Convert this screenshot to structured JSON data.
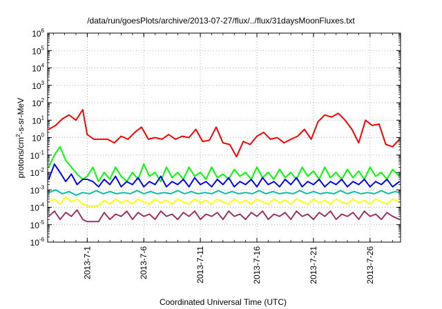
{
  "chart_data": {
    "type": "line",
    "title": "/data/run/goesPlots/archive/2013-07-27/flux/../flux/31daysMoonFluxes.txt",
    "xlabel": "Coordinated Universal Time (UTC)",
    "ylabel": "protons/cm²-s-sr-MeV",
    "ylabel_parts": [
      "protons/cm",
      "2",
      "-s-sr-MeV"
    ],
    "yscale": "log",
    "ylim": [
      1e-06,
      1000000.0
    ],
    "xlim_days": [
      -3.5,
      27.7
    ],
    "x_ticks": [
      {
        "label": "2013-7-1",
        "day": 0
      },
      {
        "label": "2013-7-6",
        "day": 5
      },
      {
        "label": "2013-7-11",
        "day": 10
      },
      {
        "label": "2013-7-16",
        "day": 15
      },
      {
        "label": "2013-7-21",
        "day": 20
      },
      {
        "label": "2013-7-26",
        "day": 25
      }
    ],
    "y_ticks": [
      {
        "base": "10",
        "exp": "-6",
        "exp10": -6
      },
      {
        "base": "10",
        "exp": "-5",
        "exp10": -5
      },
      {
        "base": "10",
        "exp": "-4",
        "exp10": -4
      },
      {
        "base": "10",
        "exp": "-3",
        "exp10": -3
      },
      {
        "base": "10",
        "exp": "-2",
        "exp10": -2
      },
      {
        "base": "10",
        "exp": "-1",
        "exp10": -1
      },
      {
        "base": "10",
        "exp": "0",
        "exp10": 0
      },
      {
        "base": "10",
        "exp": "1",
        "exp10": 1
      },
      {
        "base": "10",
        "exp": "2",
        "exp10": 2
      },
      {
        "base": "10",
        "exp": "3",
        "exp10": 3
      },
      {
        "base": "10",
        "exp": "4",
        "exp10": 4
      },
      {
        "base": "10",
        "exp": "5",
        "exp10": 5
      },
      {
        "base": "10",
        "exp": "6",
        "exp10": 6
      }
    ],
    "grid": true,
    "series": [
      {
        "color": "#ff0000",
        "x": [
          -3.4,
          -2.8,
          -2.2,
          -1.6,
          -1.0,
          -0.4,
          0.0,
          0.6,
          1.2,
          1.8,
          2.4,
          3.0,
          3.6,
          4.2,
          4.8,
          5.4,
          6.0,
          6.6,
          7.2,
          7.8,
          8.4,
          9.0,
          9.6,
          10.2,
          10.8,
          11.4,
          12.0,
          12.6,
          13.2,
          13.8,
          14.4,
          15.0,
          15.6,
          16.2,
          16.8,
          17.4,
          18.0,
          18.6,
          19.2,
          19.8,
          20.4,
          21.0,
          21.6,
          22.2,
          22.8,
          23.4,
          24.0,
          24.6,
          25.2,
          25.8,
          26.4,
          27.0,
          27.6
        ],
        "y": [
          3,
          5,
          12,
          20,
          10,
          40,
          1.5,
          0.8,
          0.8,
          0.8,
          0.5,
          1.2,
          0.8,
          2,
          4,
          0.8,
          1,
          0.8,
          1.5,
          0.8,
          1.2,
          1,
          3,
          0.6,
          0.7,
          4,
          0.5,
          0.4,
          0.08,
          0.6,
          0.4,
          1.2,
          2,
          0.8,
          1,
          0.5,
          0.8,
          1.2,
          3,
          0.8,
          8,
          20,
          15,
          25,
          10,
          3,
          0.5,
          10,
          5,
          6,
          0.4,
          0.3,
          0.8
        ]
      },
      {
        "color": "#00ff00",
        "x": [
          -3.4,
          -2.9,
          -2.4,
          -1.9,
          -1.4,
          -0.9,
          -0.4,
          0.0,
          0.5,
          1.0,
          1.5,
          2.0,
          2.5,
          3.0,
          3.5,
          4.0,
          4.5,
          5.0,
          5.5,
          6.0,
          6.5,
          7.0,
          7.5,
          8.0,
          8.5,
          9.0,
          9.5,
          10.0,
          10.5,
          11.0,
          11.5,
          12.0,
          12.5,
          13.0,
          13.5,
          14.0,
          14.5,
          15.0,
          15.5,
          16.0,
          16.5,
          17.0,
          17.5,
          18.0,
          18.5,
          19.0,
          19.5,
          20.0,
          20.5,
          21.0,
          21.5,
          22.0,
          22.5,
          23.0,
          23.5,
          24.0,
          24.5,
          25.0,
          25.5,
          26.0,
          26.5,
          27.0,
          27.6
        ],
        "y": [
          0.02,
          0.1,
          0.3,
          0.05,
          0.02,
          0.008,
          0.004,
          0.006,
          0.02,
          0.003,
          0.01,
          0.004,
          0.02,
          0.006,
          0.003,
          0.01,
          0.004,
          0.03,
          0.006,
          0.01,
          0.003,
          0.02,
          0.005,
          0.01,
          0.004,
          0.02,
          0.006,
          0.01,
          0.004,
          0.02,
          0.005,
          0.008,
          0.004,
          0.015,
          0.006,
          0.01,
          0.004,
          0.02,
          0.005,
          0.01,
          0.004,
          0.015,
          0.005,
          0.01,
          0.004,
          0.02,
          0.006,
          0.012,
          0.004,
          0.02,
          0.005,
          0.01,
          0.004,
          0.015,
          0.005,
          0.012,
          0.004,
          0.02,
          0.006,
          0.01,
          0.004,
          0.015,
          0.006
        ]
      },
      {
        "color": "#0000ff",
        "x": [
          -3.4,
          -2.9,
          -2.4,
          -1.9,
          -1.4,
          -0.9,
          -0.4,
          0.0,
          0.5,
          1.0,
          1.5,
          2.0,
          2.5,
          3.0,
          3.5,
          4.0,
          4.5,
          5.0,
          5.5,
          6.0,
          6.5,
          7.0,
          7.5,
          8.0,
          8.5,
          9.0,
          9.5,
          10.0,
          10.5,
          11.0,
          11.5,
          12.0,
          12.5,
          13.0,
          13.5,
          14.0,
          14.5,
          15.0,
          15.5,
          16.0,
          16.5,
          17.0,
          17.5,
          18.0,
          18.5,
          19.0,
          19.5,
          20.0,
          20.5,
          21.0,
          21.5,
          22.0,
          22.5,
          23.0,
          23.5,
          24.0,
          24.5,
          25.0,
          25.5,
          26.0,
          26.5,
          27.0,
          27.6
        ],
        "y": [
          0.004,
          0.03,
          0.01,
          0.003,
          0.008,
          0.002,
          0.004,
          0.004,
          0.003,
          0.0015,
          0.004,
          0.002,
          0.006,
          0.0015,
          0.003,
          0.002,
          0.005,
          0.0015,
          0.003,
          0.002,
          0.006,
          0.0015,
          0.003,
          0.002,
          0.004,
          0.0015,
          0.005,
          0.002,
          0.003,
          0.0015,
          0.004,
          0.002,
          0.005,
          0.0015,
          0.003,
          0.002,
          0.004,
          0.0015,
          0.005,
          0.002,
          0.003,
          0.0015,
          0.004,
          0.002,
          0.005,
          0.0015,
          0.003,
          0.002,
          0.004,
          0.0015,
          0.003,
          0.002,
          0.004,
          0.0015,
          0.003,
          0.002,
          0.004,
          0.0015,
          0.003,
          0.002,
          0.004,
          0.0015,
          0.003
        ]
      },
      {
        "color": "#00c0a0",
        "x": [
          -3.4,
          -2.8,
          -2.2,
          -1.6,
          -1.0,
          -0.4,
          0.2,
          0.8,
          1.4,
          2.0,
          2.6,
          3.2,
          3.8,
          4.4,
          5.0,
          5.6,
          6.2,
          6.8,
          7.4,
          8.0,
          8.6,
          9.2,
          9.8,
          10.4,
          11.0,
          11.6,
          12.2,
          12.8,
          13.4,
          14.0,
          14.6,
          15.2,
          15.8,
          16.4,
          17.0,
          17.6,
          18.2,
          18.8,
          19.4,
          20.0,
          20.6,
          21.2,
          21.8,
          22.4,
          23.0,
          23.6,
          24.2,
          24.8,
          25.4,
          26.0,
          26.6,
          27.2,
          27.6
        ],
        "y": [
          0.0007,
          0.001,
          0.0006,
          0.0008,
          0.0005,
          0.0007,
          0.0006,
          0.0009,
          0.0006,
          0.0008,
          0.0006,
          0.0007,
          0.0006,
          0.0009,
          0.0006,
          0.0008,
          0.0006,
          0.0007,
          0.0006,
          0.0009,
          0.0006,
          0.0008,
          0.0006,
          0.0007,
          0.0006,
          0.0009,
          0.0006,
          0.0008,
          0.0006,
          0.0007,
          0.0006,
          0.0009,
          0.0006,
          0.0008,
          0.0006,
          0.0007,
          0.0006,
          0.0009,
          0.0006,
          0.0008,
          0.0006,
          0.0007,
          0.0006,
          0.0009,
          0.0006,
          0.0008,
          0.0006,
          0.0007,
          0.0006,
          0.0009,
          0.0006,
          0.0008,
          0.0007
        ]
      },
      {
        "color": "#ffff00",
        "x": [
          -3.4,
          -2.9,
          -2.4,
          -1.9,
          -1.4,
          -0.9,
          -0.4,
          0.0,
          0.5,
          1.0,
          1.5,
          2.0,
          2.5,
          3.0,
          3.5,
          4.0,
          4.5,
          5.0,
          5.5,
          6.0,
          6.5,
          7.0,
          7.5,
          8.0,
          8.5,
          9.0,
          9.5,
          10.0,
          10.5,
          11.0,
          11.5,
          12.0,
          12.5,
          13.0,
          13.5,
          14.0,
          14.5,
          15.0,
          15.5,
          16.0,
          16.5,
          17.0,
          17.5,
          18.0,
          18.5,
          19.0,
          19.5,
          20.0,
          20.5,
          21.0,
          21.5,
          22.0,
          22.5,
          23.0,
          23.5,
          24.0,
          24.5,
          25.0,
          25.5,
          26.0,
          26.5,
          27.0,
          27.6
        ],
        "y": [
          0.0002,
          0.0003,
          0.00015,
          0.0004,
          0.0002,
          0.0003,
          0.00015,
          0.00012,
          0.00012,
          0.00012,
          0.00025,
          0.00015,
          0.0003,
          0.00018,
          0.00025,
          0.00015,
          0.0003,
          0.0002,
          0.00015,
          0.0003,
          0.00018,
          0.00025,
          0.00015,
          0.0003,
          0.0002,
          0.00015,
          0.0003,
          0.00018,
          0.00025,
          0.00015,
          0.0003,
          0.0002,
          0.00015,
          0.0003,
          0.00018,
          0.00025,
          0.00015,
          0.0003,
          0.0002,
          0.00015,
          0.0003,
          0.00018,
          0.00025,
          0.00015,
          0.0003,
          0.0002,
          0.00015,
          0.0003,
          0.00018,
          0.00025,
          0.00015,
          0.0003,
          0.0002,
          0.00015,
          0.0003,
          0.00018,
          0.00025,
          0.00015,
          0.0003,
          0.0002,
          0.00015,
          0.0003,
          0.0002
        ]
      },
      {
        "color": "#a03060",
        "x": [
          -3.4,
          -2.9,
          -2.4,
          -1.9,
          -1.4,
          -0.9,
          -0.4,
          0.0,
          0.5,
          1.0,
          1.5,
          2.0,
          2.5,
          3.0,
          3.5,
          4.0,
          4.5,
          5.0,
          5.5,
          6.0,
          6.5,
          7.0,
          7.5,
          8.0,
          8.5,
          9.0,
          9.5,
          10.0,
          10.5,
          11.0,
          11.5,
          12.0,
          12.5,
          13.0,
          13.5,
          14.0,
          14.5,
          15.0,
          15.5,
          16.0,
          16.5,
          17.0,
          17.5,
          18.0,
          18.5,
          19.0,
          19.5,
          20.0,
          20.5,
          21.0,
          21.5,
          22.0,
          22.5,
          23.0,
          23.5,
          24.0,
          24.5,
          25.0,
          25.5,
          26.0,
          26.5,
          27.0,
          27.6
        ],
        "y": [
          3e-05,
          6e-05,
          2e-05,
          5e-05,
          3e-05,
          7e-05,
          2e-05,
          1.5e-05,
          1.5e-05,
          1.5e-05,
          5e-05,
          2e-05,
          4e-05,
          3e-05,
          6e-05,
          2e-05,
          5e-05,
          3e-05,
          4e-05,
          2e-05,
          6e-05,
          3e-05,
          4e-05,
          2e-05,
          5e-05,
          3e-05,
          6e-05,
          2e-05,
          4e-05,
          3e-05,
          5e-05,
          2e-05,
          6e-05,
          3e-05,
          4e-05,
          2e-05,
          5e-05,
          3e-05,
          6e-05,
          2e-05,
          4e-05,
          3e-05,
          5e-05,
          2e-05,
          6e-05,
          3e-05,
          4e-05,
          2e-05,
          5e-05,
          3e-05,
          6e-05,
          2e-05,
          4e-05,
          3e-05,
          5e-05,
          2e-05,
          6e-05,
          3e-05,
          4e-05,
          2e-05,
          5e-05,
          3e-05,
          2e-05
        ]
      }
    ]
  }
}
